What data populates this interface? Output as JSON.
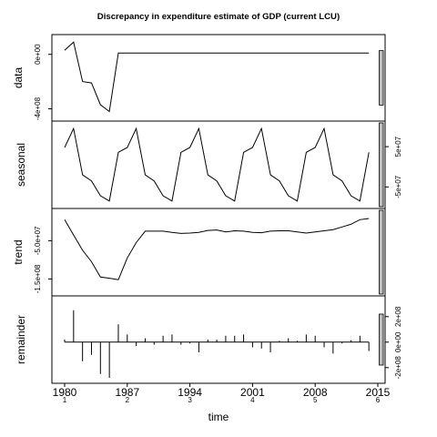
{
  "chart_data": {
    "type": "line",
    "title": "Discrepancy in expenditure estimate of GDP (current LCU)",
    "xlabel": "time",
    "x_tick_labels": [
      "1980",
      "1987",
      "1994",
      "2001",
      "2008",
      "2015"
    ],
    "x_tick_values": [
      1980,
      1987,
      1994,
      2001,
      2008,
      2015
    ],
    "x_sub_tick_labels": [
      "1",
      "2",
      "3",
      "4",
      "5",
      "6"
    ],
    "xlim": [
      1980,
      2015
    ],
    "period": 7,
    "years": [
      1980,
      1981,
      1982,
      1983,
      1984,
      1985,
      1986,
      1987,
      1988,
      1989,
      1990,
      1991,
      1992,
      1993,
      1994,
      1995,
      1996,
      1997,
      1998,
      1999,
      2000,
      2001,
      2002,
      2003,
      2004,
      2005,
      2006,
      2007,
      2008,
      2009,
      2010,
      2011,
      2012,
      2013,
      2014
    ],
    "panels": [
      {
        "name": "data",
        "ylabel": "data",
        "ylim": [
          -450000000,
          105000000
        ],
        "yticks": [
          {
            "value": 0,
            "label": "0e+00"
          },
          {
            "value": -400000000,
            "label": "-4e+08"
          }
        ],
        "ytick_side": "left",
        "style": "line",
        "values": [
          30000000,
          90000000,
          -200000000,
          -210000000,
          -370000000,
          -420000000,
          10000000,
          10000000,
          10000000,
          10000000,
          10000000,
          10000000,
          10000000,
          10000000,
          10000000,
          10000000,
          10000000,
          10000000,
          10000000,
          10000000,
          10000000,
          10000000,
          10000000,
          10000000,
          10000000,
          10000000,
          10000000,
          10000000,
          10000000,
          10000000,
          10000000,
          10000000,
          10000000,
          10000000,
          10000000
        ]
      },
      {
        "name": "seasonal",
        "ylabel": "seasonal",
        "ylim": [
          -90000000,
          100000000
        ],
        "yticks": [
          {
            "value": 50000000,
            "label": "5e+07"
          },
          {
            "value": -50000000,
            "label": "-5e+07"
          }
        ],
        "ytick_side": "right",
        "style": "line",
        "values": [
          48000000,
          95000000,
          -20000000,
          -35000000,
          -72000000,
          -85000000,
          36000000,
          48000000,
          95000000,
          -20000000,
          -35000000,
          -72000000,
          -85000000,
          36000000,
          48000000,
          95000000,
          -20000000,
          -35000000,
          -72000000,
          -85000000,
          36000000,
          48000000,
          95000000,
          -20000000,
          -35000000,
          -72000000,
          -85000000,
          36000000,
          48000000,
          95000000,
          -20000000,
          -35000000,
          -72000000,
          -85000000,
          36000000
        ]
      },
      {
        "name": "trend",
        "ylabel": "trend",
        "ylim": [
          -180000000,
          20000000
        ],
        "yticks": [
          {
            "value": -50000000,
            "label": "-5.0e+07"
          },
          {
            "value": -150000000,
            "label": "-1.5e+08"
          }
        ],
        "ytick_side": "left",
        "style": "line",
        "values": [
          5000000,
          -35000000,
          -75000000,
          -105000000,
          -145000000,
          -148000000,
          -152000000,
          -95000000,
          -55000000,
          -25000000,
          -25000000,
          -25000000,
          -28000000,
          -31000000,
          -30000000,
          -28000000,
          -23000000,
          -22000000,
          -27000000,
          -24000000,
          -25000000,
          -28000000,
          -29000000,
          -25000000,
          -24000000,
          -24000000,
          -27000000,
          -30000000,
          -27000000,
          -24000000,
          -21000000,
          -14000000,
          -7000000,
          5000000,
          8000000
        ]
      },
      {
        "name": "remainder",
        "ylabel": "remainder",
        "ylim": [
          -280000000,
          320000000
        ],
        "yticks": [
          {
            "value": 200000000,
            "label": "2e+08"
          },
          {
            "value": 0,
            "label": "0e+00"
          },
          {
            "value": -200000000,
            "label": "-2e+08"
          }
        ],
        "ytick_side": "right",
        "style": "spikes",
        "values": [
          20000000,
          250000000,
          -150000000,
          -100000000,
          -250000000,
          -280000000,
          140000000,
          60000000,
          -30000000,
          30000000,
          -20000000,
          50000000,
          60000000,
          -20000000,
          -10000000,
          -80000000,
          20000000,
          20000000,
          50000000,
          50000000,
          60000000,
          -40000000,
          -50000000,
          -80000000,
          10000000,
          30000000,
          10000000,
          60000000,
          50000000,
          -40000000,
          -90000000,
          -10000000,
          15000000,
          50000000,
          -70000000
        ]
      }
    ],
    "scale_bar_span": 400000000
  }
}
